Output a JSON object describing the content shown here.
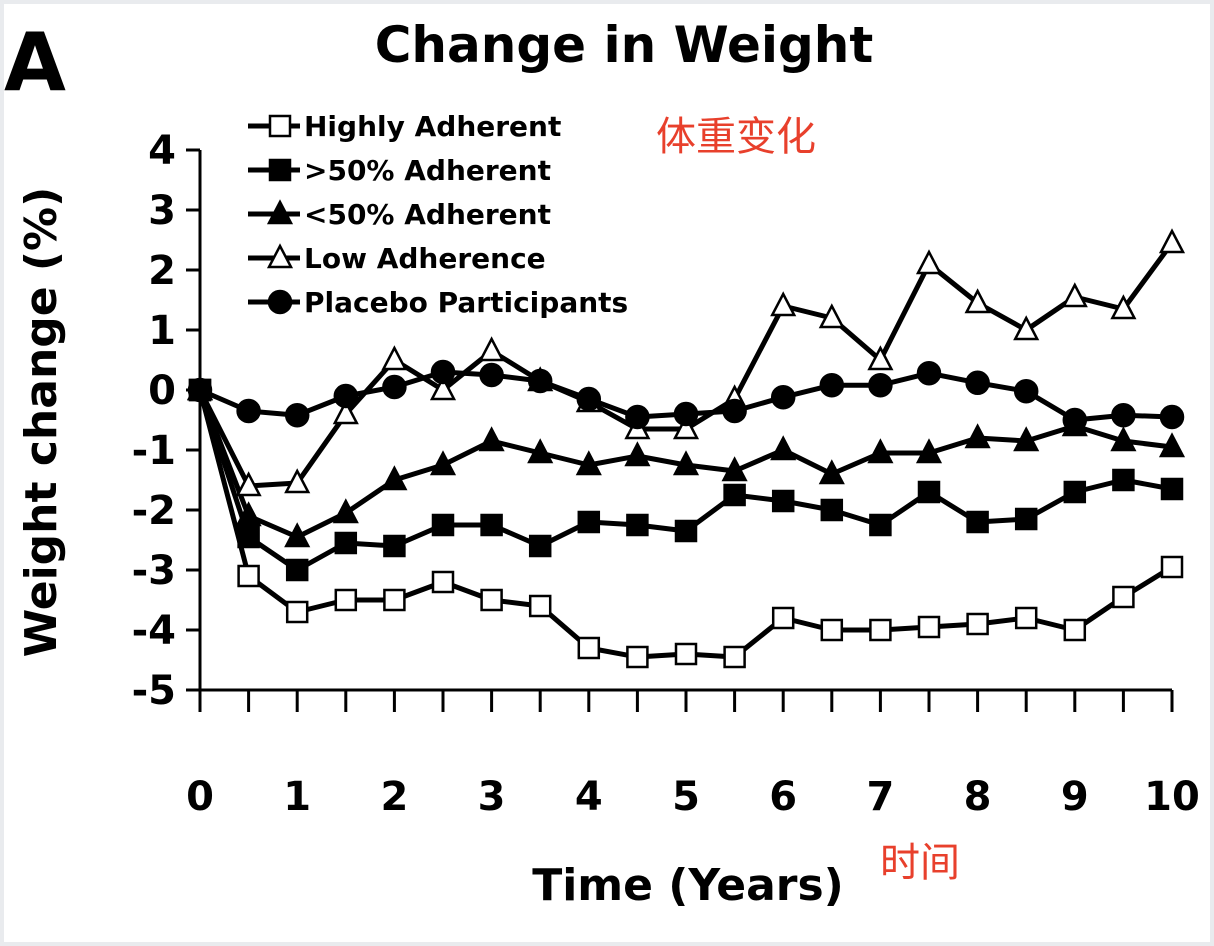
{
  "panel_label": "A",
  "annotations": {
    "title_cn": "体重变化",
    "xlabel_cn": "时间"
  },
  "colors": {
    "annotation": "#e8402c",
    "line": "#000000",
    "background": "#ffffff"
  },
  "chart_data": {
    "type": "line",
    "title": "Change in Weight",
    "xlabel": "Time (Years)",
    "ylabel": "Weight change (%)",
    "xlim": [
      0,
      10
    ],
    "ylim": [
      -5,
      4
    ],
    "xticks": [
      "0",
      "1",
      "2",
      "3",
      "4",
      "5",
      "6",
      "7",
      "8",
      "9",
      "10"
    ],
    "yticks": [
      "4",
      "3",
      "2",
      "1",
      "0",
      "-1",
      "-2",
      "-3",
      "-4",
      "-5"
    ],
    "x": [
      0,
      0.5,
      1,
      1.5,
      2,
      2.5,
      3,
      3.5,
      4,
      4.5,
      5,
      5.5,
      6,
      6.5,
      7,
      7.5,
      8,
      8.5,
      9,
      9.5,
      10
    ],
    "legend_position": "top-left",
    "series": [
      {
        "name": "Highly Adherent",
        "marker": "square-open",
        "values": [
          0,
          -3.1,
          -3.7,
          -3.5,
          -3.5,
          -3.2,
          -3.5,
          -3.6,
          -4.3,
          -4.45,
          -4.4,
          -4.45,
          -3.8,
          -4.0,
          -4.0,
          -3.95,
          -3.9,
          -3.8,
          -4.0,
          -3.45,
          -2.95
        ]
      },
      {
        "name": ">50% Adherent",
        "marker": "square-filled",
        "values": [
          0,
          -2.45,
          -3.0,
          -2.55,
          -2.6,
          -2.25,
          -2.25,
          -2.6,
          -2.2,
          -2.25,
          -2.35,
          -1.75,
          -1.85,
          -2.0,
          -2.25,
          -1.7,
          -2.2,
          -2.15,
          -1.7,
          -1.5,
          -1.65
        ]
      },
      {
        "name": "<50% Adherent",
        "marker": "triangle-filled",
        "values": [
          0,
          -2.1,
          -2.45,
          -2.05,
          -1.5,
          -1.25,
          -0.85,
          -1.05,
          -1.25,
          -1.1,
          -1.25,
          -1.35,
          -1.0,
          -1.4,
          -1.05,
          -1.05,
          -0.8,
          -0.85,
          -0.6,
          -0.85,
          -0.95
        ]
      },
      {
        "name": "Low Adherence",
        "marker": "triangle-open",
        "values": [
          0,
          -1.6,
          -1.55,
          -0.4,
          0.5,
          0.0,
          0.65,
          0.15,
          -0.2,
          -0.65,
          -0.65,
          -0.15,
          1.4,
          1.2,
          0.5,
          2.1,
          1.45,
          1.0,
          1.55,
          1.35,
          2.45
        ]
      },
      {
        "name": "Placebo Participants",
        "marker": "circle-filled",
        "values": [
          0,
          -0.35,
          -0.42,
          -0.1,
          0.05,
          0.3,
          0.25,
          0.15,
          -0.15,
          -0.45,
          -0.4,
          -0.35,
          -0.12,
          0.08,
          0.08,
          0.28,
          0.12,
          -0.02,
          -0.5,
          -0.42,
          -0.45
        ]
      }
    ]
  }
}
